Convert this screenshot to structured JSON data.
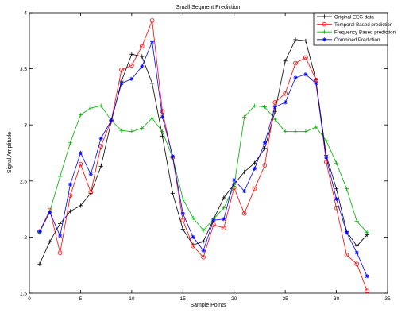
{
  "chart_data": {
    "type": "line",
    "title": "Small Segment Prediction",
    "xlabel": "Sample Points",
    "ylabel": "Signal Amplitude",
    "xlim": [
      0,
      35
    ],
    "ylim": [
      1.5,
      4
    ],
    "xticks": [
      0,
      5,
      10,
      15,
      20,
      25,
      30,
      35
    ],
    "yticks": [
      1.5,
      2,
      2.5,
      3,
      3.5,
      4
    ],
    "xtick_labels": [
      "0",
      "5",
      "10",
      "15",
      "20",
      "25",
      "30",
      "35"
    ],
    "ytick_labels": [
      "1.5",
      "2",
      "2.5",
      "3",
      "3.5",
      "4"
    ],
    "grid": false,
    "legend_position": "top-right",
    "x": [
      1,
      2,
      3,
      4,
      5,
      6,
      7,
      8,
      9,
      10,
      11,
      12,
      13,
      14,
      15,
      16,
      17,
      18,
      19,
      20,
      21,
      22,
      23,
      24,
      25,
      26,
      27,
      28,
      29,
      30,
      31,
      32,
      33
    ],
    "series": [
      {
        "name": "Original EEG data",
        "color": "#000000",
        "marker": "plus",
        "values": [
          1.76,
          1.96,
          2.12,
          2.23,
          2.28,
          2.39,
          2.63,
          3.03,
          3.39,
          3.63,
          3.61,
          3.37,
          2.9,
          2.39,
          2.07,
          1.93,
          1.96,
          2.16,
          2.35,
          2.47,
          2.58,
          2.66,
          2.79,
          3.12,
          3.57,
          3.76,
          3.75,
          3.4,
          2.73,
          2.43,
          2.05,
          1.92,
          2.02
        ]
      },
      {
        "name": "Temporal Based prediction",
        "color": "#ff0000",
        "marker": "circle",
        "values": [
          2.05,
          2.24,
          1.86,
          2.37,
          2.65,
          2.4,
          2.81,
          3.04,
          3.49,
          3.53,
          3.7,
          3.93,
          3.12,
          2.71,
          2.15,
          1.92,
          1.82,
          2.11,
          2.08,
          2.44,
          2.21,
          2.43,
          2.64,
          3.2,
          3.28,
          3.55,
          3.6,
          3.4,
          2.67,
          2.26,
          1.84,
          1.76,
          1.52
        ]
      },
      {
        "name": "Frequency Based prediction",
        "color": "#00b000",
        "marker": "plus",
        "values": [
          2.04,
          2.23,
          2.54,
          2.84,
          3.09,
          3.15,
          3.17,
          3.04,
          2.95,
          2.94,
          2.97,
          3.06,
          2.94,
          2.71,
          2.34,
          2.17,
          2.06,
          2.16,
          2.26,
          2.45,
          3.07,
          3.17,
          3.16,
          3.05,
          2.94,
          2.94,
          2.94,
          2.98,
          2.86,
          2.66,
          2.43,
          2.14,
          2.04
        ]
      },
      {
        "name": "Combined Prediction",
        "color": "#0000ff",
        "marker": "star",
        "values": [
          2.05,
          2.22,
          2.01,
          2.47,
          2.75,
          2.56,
          2.88,
          3.04,
          3.37,
          3.41,
          3.52,
          3.74,
          3.07,
          2.72,
          2.21,
          2.0,
          1.88,
          2.15,
          2.16,
          2.51,
          2.41,
          2.61,
          2.84,
          3.16,
          3.2,
          3.42,
          3.45,
          3.37,
          2.71,
          2.34,
          2.04,
          1.86,
          1.65
        ]
      }
    ]
  }
}
